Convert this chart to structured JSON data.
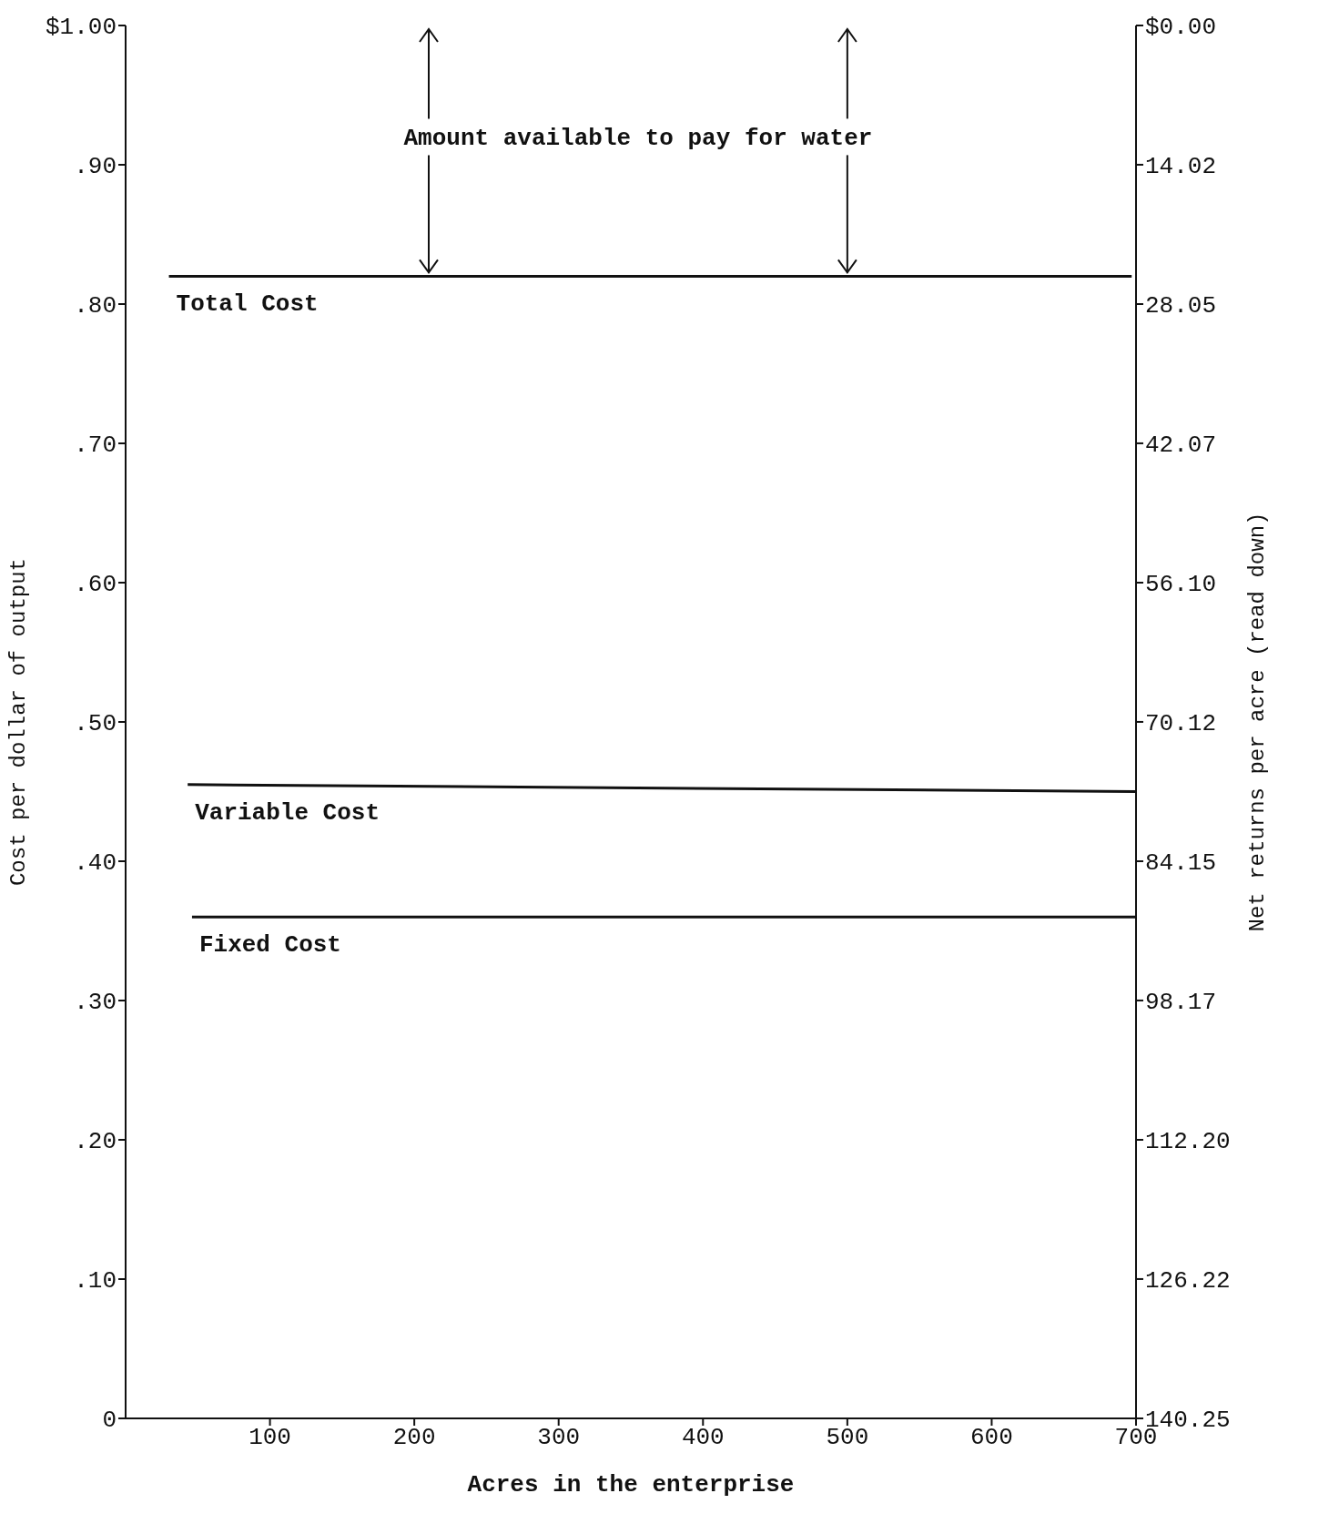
{
  "chart_data": {
    "type": "line",
    "xlabel": "Acres in the enterprise",
    "ylabel": "Cost per dollar of output",
    "y2label": "Net returns per acre (read down)",
    "xlim": [
      0,
      700
    ],
    "xticks": [
      100,
      200,
      300,
      400,
      500,
      600,
      700
    ],
    "ylim": [
      0,
      1
    ],
    "yticks": [
      {
        "value": 0,
        "label": "0"
      },
      {
        "value": 0.1,
        "label": ".10"
      },
      {
        "value": 0.2,
        "label": ".20"
      },
      {
        "value": 0.3,
        "label": ".30"
      },
      {
        "value": 0.4,
        "label": ".40"
      },
      {
        "value": 0.5,
        "label": ".50"
      },
      {
        "value": 0.6,
        "label": ".60"
      },
      {
        "value": 0.7,
        "label": ".70"
      },
      {
        "value": 0.8,
        "label": ".80"
      },
      {
        "value": 0.9,
        "label": ".90"
      },
      {
        "value": 1,
        "label": "$1.00"
      }
    ],
    "y2lim": [
      140.25,
      0
    ],
    "y2ticks": [
      {
        "value": 0,
        "label": "$0.00"
      },
      14.02,
      28.05,
      42.07,
      {
        "value": 56.1,
        "label": "56.10"
      },
      70.12,
      84.15,
      98.17,
      {
        "value": 112.2,
        "label": "112.20"
      },
      126.22,
      140.25
    ],
    "series": [
      {
        "name": "Total Cost",
        "color": "#111111",
        "x": [
          30,
          697
        ],
        "values": [
          0.82,
          0.82
        ]
      },
      {
        "name": "Variable Cost",
        "color": "#111111",
        "x": [
          43,
          700
        ],
        "values": [
          0.455,
          0.45
        ]
      },
      {
        "name": "Fixed Cost",
        "color": "#111111",
        "x": [
          46,
          700
        ],
        "values": [
          0.36,
          0.36
        ]
      }
    ],
    "annotations": [
      {
        "text": "Amount available to pay for water",
        "x": 500,
        "y": 0.82
      }
    ]
  }
}
